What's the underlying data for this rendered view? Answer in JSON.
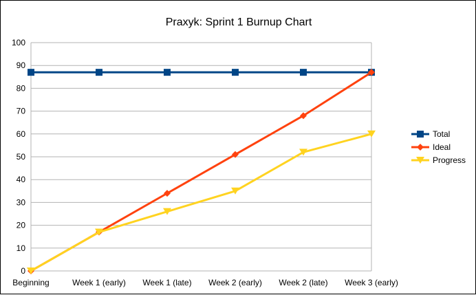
{
  "chart_data": {
    "type": "line",
    "title": "Praxyk: Sprint 1 Burnup Chart",
    "xlabel": "",
    "ylabel": "",
    "categories": [
      "Beginning",
      "Week 1 (early)",
      "Week 1 (late)",
      "Week 2 (early)",
      "Week 2 (late)",
      "Week 3 (early)"
    ],
    "ylim": [
      0,
      100
    ],
    "yticks": [
      0,
      10,
      20,
      30,
      40,
      50,
      60,
      70,
      80,
      90,
      100
    ],
    "grid": true,
    "legend_position": "right",
    "series": [
      {
        "name": "Total",
        "values": [
          87,
          87,
          87,
          87,
          87,
          87
        ],
        "color": "#004586",
        "marker": "square"
      },
      {
        "name": "Ideal",
        "values": [
          0,
          17,
          34,
          51,
          68,
          87
        ],
        "color": "#ff420e",
        "marker": "diamond"
      },
      {
        "name": "Progress",
        "values": [
          0,
          17,
          26,
          35,
          52,
          60
        ],
        "color": "#ffd320",
        "marker": "triangle-down"
      }
    ]
  }
}
